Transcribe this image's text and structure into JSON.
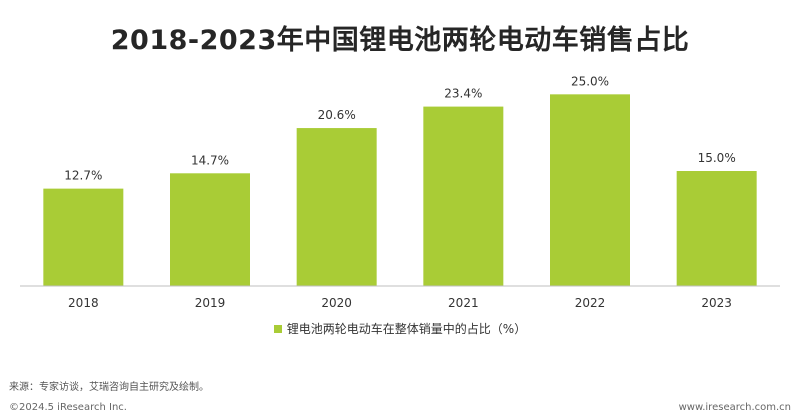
{
  "chart_data": {
    "type": "bar",
    "title": "2018-2023年中国锂电池两轮电动车销售占比",
    "categories": [
      "2018",
      "2019",
      "2020",
      "2021",
      "2022",
      "2023"
    ],
    "series": [
      {
        "name": "锂电池两轮电动车在整体销量中的占比（%）",
        "values": [
          12.7,
          14.7,
          20.6,
          23.4,
          25.0,
          15.0
        ],
        "labels": [
          "12.7%",
          "14.7%",
          "20.6%",
          "23.4%",
          "25.0%",
          "15.0%"
        ]
      }
    ],
    "ylim": [
      0,
      30
    ],
    "grid": false,
    "legend_position": "bottom",
    "bar_color": "#a9cc36",
    "axis_color": "#bfbfbf"
  },
  "source_text": "来源：专家访谈，艾瑞咨询自主研究及绘制。",
  "footer": {
    "copyright": "©2024.5 iResearch Inc.",
    "website": "www.iresearch.com.cn"
  }
}
